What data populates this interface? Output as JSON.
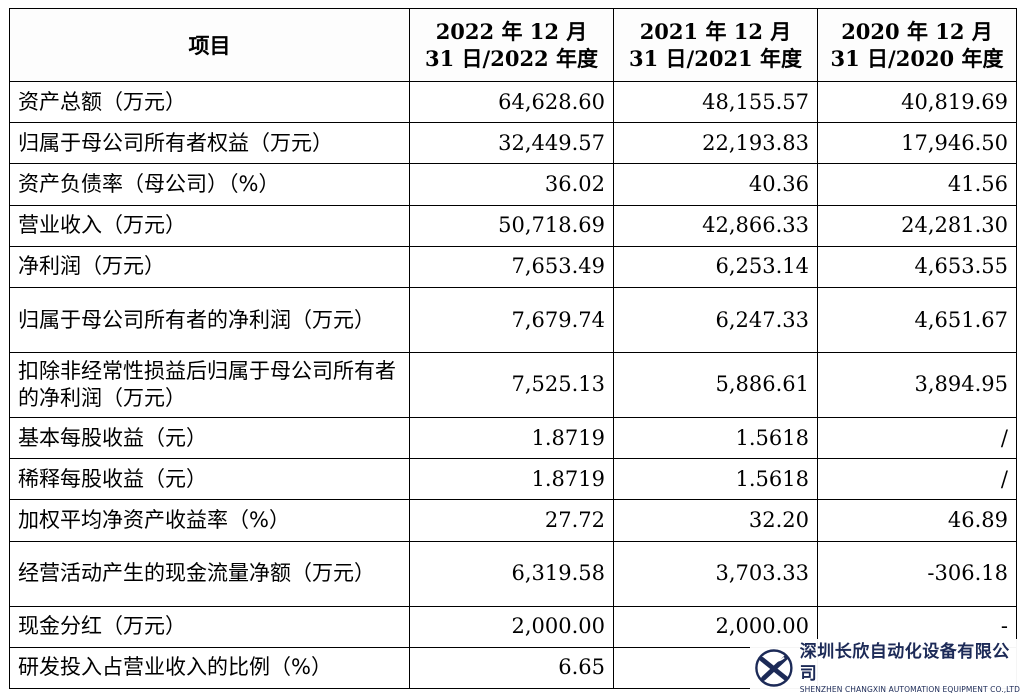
{
  "table": {
    "headers": [
      "项目",
      "2022 年 12 月 31 日/2022 年度",
      "2021 年 12 月 31 日/2021 年度",
      "2020 年 12 月 31 日/2020 年度"
    ],
    "rows": [
      {
        "item": "资产总额（万元）",
        "v2022": "64,628.60",
        "v2021": "48,155.57",
        "v2020": "40,819.69"
      },
      {
        "item": "归属于母公司所有者权益（万元）",
        "v2022": "32,449.57",
        "v2021": "22,193.83",
        "v2020": "17,946.50"
      },
      {
        "item": "资产负债率（母公司）（%）",
        "v2022": "36.02",
        "v2021": "40.36",
        "v2020": "41.56"
      },
      {
        "item": "营业收入（万元）",
        "v2022": "50,718.69",
        "v2021": "42,866.33",
        "v2020": "24,281.30"
      },
      {
        "item": "净利润（万元）",
        "v2022": "7,653.49",
        "v2021": "6,253.14",
        "v2020": "4,653.55"
      },
      {
        "item": "归属于母公司所有者的净利润（万元）",
        "v2022": "7,679.74",
        "v2021": "6,247.33",
        "v2020": "4,651.67"
      },
      {
        "item": "扣除非经常性损益后归属于母公司所有者的净利润（万元）",
        "v2022": "7,525.13",
        "v2021": "5,886.61",
        "v2020": "3,894.95"
      },
      {
        "item": "基本每股收益（元）",
        "v2022": "1.8719",
        "v2021": "1.5618",
        "v2020": "/"
      },
      {
        "item": "稀释每股收益（元）",
        "v2022": "1.8719",
        "v2021": "1.5618",
        "v2020": "/"
      },
      {
        "item": "加权平均净资产收益率（%）",
        "v2022": "27.72",
        "v2021": "32.20",
        "v2020": "46.89"
      },
      {
        "item": "经营活动产生的现金流量净额（万元）",
        "v2022": "6,319.58",
        "v2021": "3,703.33",
        "v2020": "-306.18"
      },
      {
        "item": "现金分红（万元）",
        "v2022": "2,000.00",
        "v2021": "2,000.00",
        "v2020": "-"
      },
      {
        "item": "研发投入占营业收入的比例（%）",
        "v2022": "6.65",
        "v2021": "",
        "v2020": ""
      }
    ]
  },
  "watermark": {
    "company_cn": "深圳长欣自动化设备有限公司",
    "company_en": "SHENZHEN CHANGXIN AUTOMATION EQUIPMENT CO.,LTD",
    "color": "#1c2a57"
  }
}
